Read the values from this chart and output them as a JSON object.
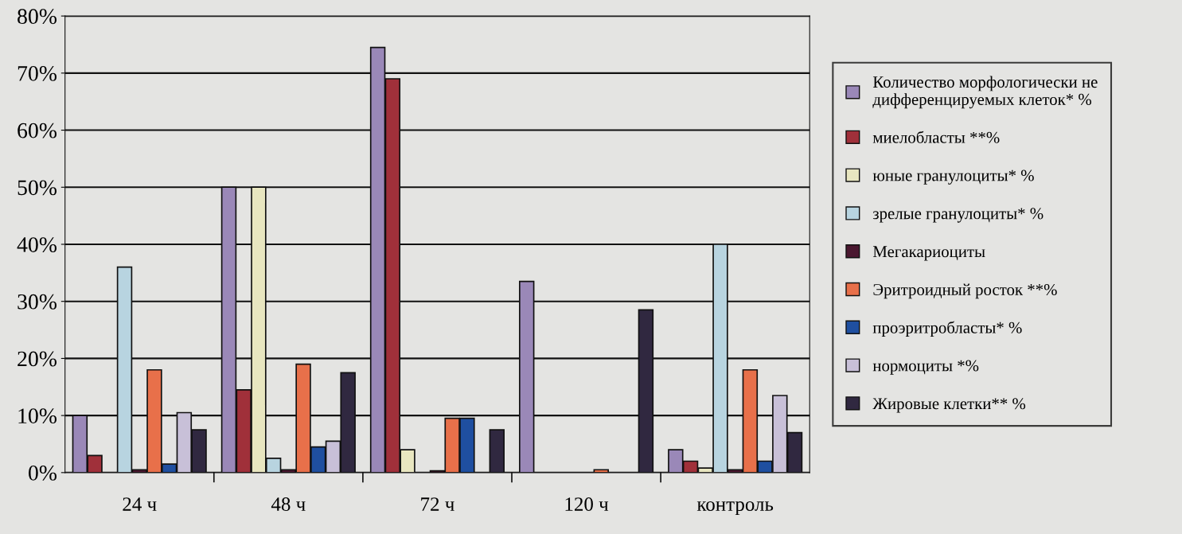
{
  "chart_data": {
    "type": "bar",
    "categories": [
      "24 ч",
      "48 ч",
      "72 ч",
      "120 ч",
      "контроль"
    ],
    "series": [
      {
        "name": "Количество морфологически не\nдифференцируемых клеток* %",
        "color": "#9a88b8",
        "values": [
          10,
          50,
          74.5,
          33.5,
          4
        ]
      },
      {
        "name": "миелобласты **%",
        "color": "#a0303a",
        "values": [
          3,
          14.5,
          69,
          null,
          2
        ]
      },
      {
        "name": "юные гранулоциты* %",
        "color": "#e8e6c0",
        "values": [
          null,
          50,
          4,
          null,
          0.8
        ]
      },
      {
        "name": "зрелые гранулоциты* %",
        "color": "#b8d4e0",
        "values": [
          36,
          2.5,
          null,
          null,
          40
        ]
      },
      {
        "name": "Мегакариоциты",
        "color": "#4a1830",
        "values": [
          0.5,
          0.5,
          0.3,
          null,
          0.5
        ]
      },
      {
        "name": "Эритроидный росток **%",
        "color": "#e8704a",
        "values": [
          18,
          19,
          9.5,
          0.5,
          18
        ]
      },
      {
        "name": "проэритробласты* %",
        "color": "#1f4fa0",
        "values": [
          1.5,
          4.5,
          9.5,
          null,
          2
        ]
      },
      {
        "name": "нормоциты *%",
        "color": "#c8c0d8",
        "values": [
          10.5,
          5.5,
          null,
          null,
          13.5
        ]
      },
      {
        "name": "Жировые клетки** %",
        "color": "#302840",
        "values": [
          7.5,
          17.5,
          7.5,
          28.5,
          7
        ]
      }
    ],
    "ylim": [
      0,
      80
    ],
    "yticks": [
      {
        "value": 0,
        "label": "0%"
      },
      {
        "value": 10,
        "label": "10%"
      },
      {
        "value": 20,
        "label": "20%"
      },
      {
        "value": 30,
        "label": "30%"
      },
      {
        "value": 40,
        "label": "40%"
      },
      {
        "value": 50,
        "label": "50%"
      },
      {
        "value": 60,
        "label": "60%"
      },
      {
        "value": 70,
        "label": "70%"
      },
      {
        "value": 80,
        "label": "80%"
      }
    ],
    "grid": "y",
    "legend": "right"
  }
}
